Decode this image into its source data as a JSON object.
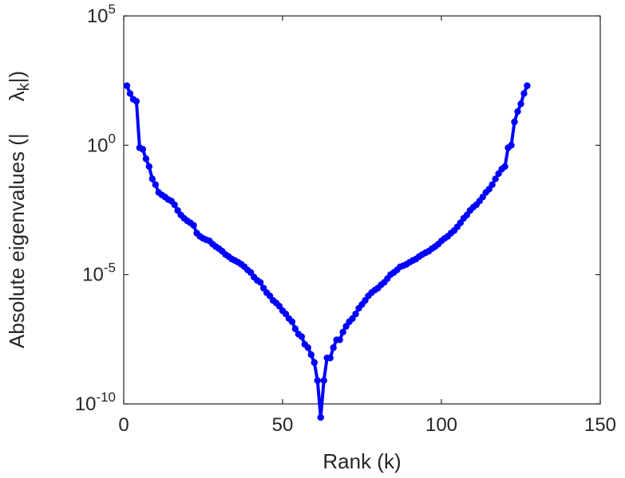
{
  "chart_data": {
    "type": "line",
    "xlabel": "Rank (k)",
    "ylabel": "Absolute eigenvalues (|     λk|)",
    "ylabel_parts": {
      "prefix": "Absolute eigenvalues (|",
      "symbol": "λ",
      "sub": "k",
      "suffix": "|)"
    },
    "xlim": [
      0,
      150
    ],
    "ylim": [
      1e-10,
      100000.0
    ],
    "yscale": "log",
    "xticks": [
      0,
      50,
      100,
      150
    ],
    "yticks": [
      {
        "value": 1e-10,
        "base": "10",
        "exp": "-10"
      },
      {
        "value": 1e-05,
        "base": "10",
        "exp": "-5"
      },
      {
        "value": 1,
        "base": "10",
        "exp": "0"
      },
      {
        "value": 100000.0,
        "base": "10",
        "exp": "5"
      }
    ],
    "grid": false,
    "series_color": "#0000ff",
    "series": [
      {
        "x": [
          1,
          2,
          3,
          4,
          5,
          6,
          7,
          8,
          9,
          10,
          11,
          12,
          13,
          14,
          15,
          16,
          17,
          18,
          19,
          20,
          21,
          22,
          23,
          24,
          25,
          26,
          27,
          28,
          29,
          30,
          31,
          32,
          33,
          34,
          35,
          36,
          37,
          38,
          39,
          40,
          41,
          42,
          43,
          44,
          45,
          46,
          47,
          48,
          49,
          50,
          51,
          52,
          53,
          54,
          55,
          56,
          57,
          58,
          59,
          60,
          61,
          62,
          63,
          64,
          65,
          66,
          67,
          68,
          69,
          70,
          71,
          72,
          73,
          74,
          75,
          76,
          77,
          78,
          79,
          80,
          81,
          82,
          83,
          84,
          85,
          86,
          87,
          88,
          89,
          90,
          91,
          92,
          93,
          94,
          95,
          96,
          97,
          98,
          99,
          100,
          101,
          102,
          103,
          104,
          105,
          106,
          107,
          108,
          109,
          110,
          111,
          112,
          113,
          114,
          115,
          116,
          117,
          118,
          119,
          120,
          121,
          122,
          123,
          124,
          125,
          126,
          127
        ],
        "y": [
          200,
          100,
          60,
          50,
          0.8,
          0.7,
          0.3,
          0.15,
          0.05,
          0.03,
          0.015,
          0.012,
          0.01,
          0.008,
          0.007,
          0.005,
          0.003,
          0.002,
          0.0015,
          0.0012,
          0.001,
          0.0008,
          0.0004,
          0.0003,
          0.00025,
          0.00022,
          0.0002,
          0.00015,
          0.00012,
          0.0001,
          8e-05,
          6e-05,
          5e-05,
          4e-05,
          3.5e-05,
          3e-05,
          2.5e-05,
          2e-05,
          1.5e-05,
          1.2e-05,
          8e-06,
          6e-06,
          5e-06,
          3e-06,
          2e-06,
          1.5e-06,
          1e-06,
          8e-07,
          6e-07,
          4e-07,
          3e-07,
          2e-07,
          1.5e-07,
          8e-08,
          5e-08,
          4e-08,
          2e-08,
          1.5e-08,
          8e-09,
          4e-09,
          8e-10,
          3e-11,
          8e-10,
          6e-09,
          6e-09,
          1.5e-08,
          3e-08,
          3e-08,
          6e-08,
          1e-07,
          1.5e-07,
          2e-07,
          3e-07,
          5e-07,
          7e-07,
          1e-06,
          1.5e-06,
          2e-06,
          2.5e-06,
          3e-06,
          4e-06,
          5e-06,
          7e-06,
          1e-05,
          1.2e-05,
          1.5e-05,
          2e-05,
          2.2e-05,
          2.5e-05,
          3e-05,
          3.5e-05,
          4e-05,
          5e-05,
          6e-05,
          7e-05,
          8e-05,
          0.0001,
          0.00012,
          0.00015,
          0.0002,
          0.00025,
          0.0003,
          0.0004,
          0.0005,
          0.0007,
          0.001,
          0.0015,
          0.002,
          0.003,
          0.004,
          0.005,
          0.007,
          0.01,
          0.015,
          0.02,
          0.03,
          0.05,
          0.08,
          0.12,
          0.15,
          0.8,
          1,
          8,
          20,
          40,
          100,
          200
        ]
      }
    ]
  }
}
